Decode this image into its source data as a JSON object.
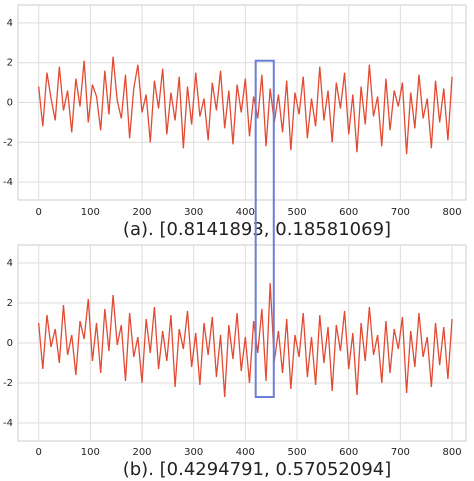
{
  "chart_data": [
    {
      "type": "line",
      "caption": "(a). [0.8141893, 0.18581069]",
      "color": "#e24a33",
      "grid": true,
      "xlim": [
        -40,
        827
      ],
      "ylim": [
        -4.9,
        4.9
      ],
      "xticks": [
        0,
        100,
        200,
        300,
        400,
        500,
        600,
        700,
        800
      ],
      "yticks": [
        -4,
        -2,
        0,
        2,
        4
      ],
      "highlight": {
        "x": [
          420,
          455
        ],
        "y_top": 2.1
      },
      "x": [
        0,
        8,
        16,
        24,
        32,
        40,
        48,
        56,
        64,
        72,
        80,
        88,
        96,
        104,
        112,
        120,
        128,
        136,
        144,
        152,
        160,
        168,
        176,
        184,
        192,
        200,
        208,
        216,
        224,
        232,
        240,
        248,
        256,
        264,
        272,
        280,
        288,
        296,
        304,
        312,
        320,
        328,
        336,
        344,
        352,
        360,
        368,
        376,
        384,
        392,
        400,
        408,
        416,
        424,
        432,
        440,
        448,
        456,
        464,
        472,
        480,
        488,
        496,
        504,
        512,
        520,
        528,
        536,
        544,
        552,
        560,
        568,
        576,
        584,
        592,
        600,
        608,
        616,
        624,
        632,
        640,
        648,
        656,
        664,
        672,
        680,
        688,
        696,
        704,
        712,
        720,
        728,
        736,
        744,
        752,
        760,
        768,
        776,
        784,
        792,
        800
      ],
      "values": [
        0.8,
        -1.2,
        1.5,
        0.2,
        -0.9,
        1.8,
        -0.4,
        0.6,
        -1.5,
        1.2,
        -0.2,
        2.1,
        -1.0,
        0.9,
        0.3,
        -1.4,
        1.6,
        -0.6,
        2.3,
        0.1,
        -0.8,
        1.4,
        -1.8,
        0.7,
        1.9,
        -0.5,
        0.4,
        -2.0,
        1.1,
        -0.3,
        1.7,
        -1.6,
        0.5,
        -0.9,
        1.3,
        -2.3,
        0.8,
        -1.1,
        1.5,
        -0.7,
        0.2,
        -1.9,
        1.0,
        -0.4,
        1.6,
        -1.3,
        0.6,
        -2.1,
        0.9,
        -0.5,
        1.2,
        -1.7,
        0.3,
        -0.8,
        1.4,
        -2.2,
        0.7,
        -1.0,
        0.4,
        -1.5,
        1.1,
        -2.4,
        0.5,
        -0.6,
        1.3,
        -1.8,
        0.2,
        -1.2,
        1.8,
        -0.9,
        0.6,
        -2.0,
        1.0,
        -0.3,
        1.5,
        -1.6,
        0.4,
        -2.5,
        0.8,
        -1.1,
        1.9,
        -0.7,
        0.3,
        -2.2,
        1.2,
        -1.4,
        0.6,
        -0.2,
        1.0,
        -2.6,
        0.5,
        -1.3,
        1.4,
        -0.8,
        0.2,
        -2.3,
        1.1,
        -1.0,
        0.7,
        -1.9,
        1.3
      ]
    },
    {
      "type": "line",
      "caption": "(b). [0.4294791, 0.57052094]",
      "color": "#e24a33",
      "grid": true,
      "xlim": [
        -40,
        827
      ],
      "ylim": [
        -4.9,
        4.9
      ],
      "xticks": [
        0,
        100,
        200,
        300,
        400,
        500,
        600,
        700,
        800
      ],
      "yticks": [
        -4,
        -2,
        0,
        2,
        4
      ],
      "highlight": {
        "x": [
          420,
          455
        ],
        "y_bottom": -2.7
      },
      "x": [
        0,
        8,
        16,
        24,
        32,
        40,
        48,
        56,
        64,
        72,
        80,
        88,
        96,
        104,
        112,
        120,
        128,
        136,
        144,
        152,
        160,
        168,
        176,
        184,
        192,
        200,
        208,
        216,
        224,
        232,
        240,
        248,
        256,
        264,
        272,
        280,
        288,
        296,
        304,
        312,
        320,
        328,
        336,
        344,
        352,
        360,
        368,
        376,
        384,
        392,
        400,
        408,
        416,
        424,
        432,
        440,
        448,
        456,
        464,
        472,
        480,
        488,
        496,
        504,
        512,
        520,
        528,
        536,
        544,
        552,
        560,
        568,
        576,
        584,
        592,
        600,
        608,
        616,
        624,
        632,
        640,
        648,
        656,
        664,
        672,
        680,
        688,
        696,
        704,
        712,
        720,
        728,
        736,
        744,
        752,
        760,
        768,
        776,
        784,
        792,
        800
      ],
      "values": [
        1.0,
        -1.3,
        1.4,
        -0.2,
        0.7,
        -1.0,
        1.9,
        -0.6,
        0.4,
        -1.6,
        1.1,
        0.2,
        2.2,
        -0.9,
        1.0,
        -1.5,
        1.7,
        -0.4,
        2.4,
        -0.1,
        0.9,
        -1.9,
        1.5,
        -0.7,
        0.3,
        -2.0,
        1.2,
        -0.5,
        1.8,
        -1.3,
        0.6,
        -0.9,
        1.4,
        -2.2,
        0.7,
        -0.3,
        1.6,
        -1.2,
        0.5,
        -2.1,
        1.0,
        -0.6,
        1.3,
        -1.7,
        0.4,
        -2.7,
        0.9,
        -0.8,
        1.5,
        -1.4,
        0.3,
        -2.0,
        1.1,
        -0.5,
        1.7,
        -1.9,
        3.0,
        -0.9,
        0.6,
        -1.5,
        1.2,
        -2.3,
        0.4,
        -0.7,
        1.5,
        -1.7,
        0.3,
        -2.1,
        1.4,
        -1.0,
        0.8,
        -2.4,
        0.9,
        -0.4,
        1.6,
        -1.3,
        0.5,
        -2.6,
        1.0,
        -0.9,
        1.8,
        -0.6,
        0.4,
        -2.0,
        1.1,
        -1.5,
        0.7,
        -0.3,
        1.3,
        -2.5,
        0.6,
        -1.2,
        1.5,
        -0.7,
        0.3,
        -2.2,
        1.0,
        -1.1,
        0.8,
        -1.8,
        1.2
      ]
    }
  ]
}
